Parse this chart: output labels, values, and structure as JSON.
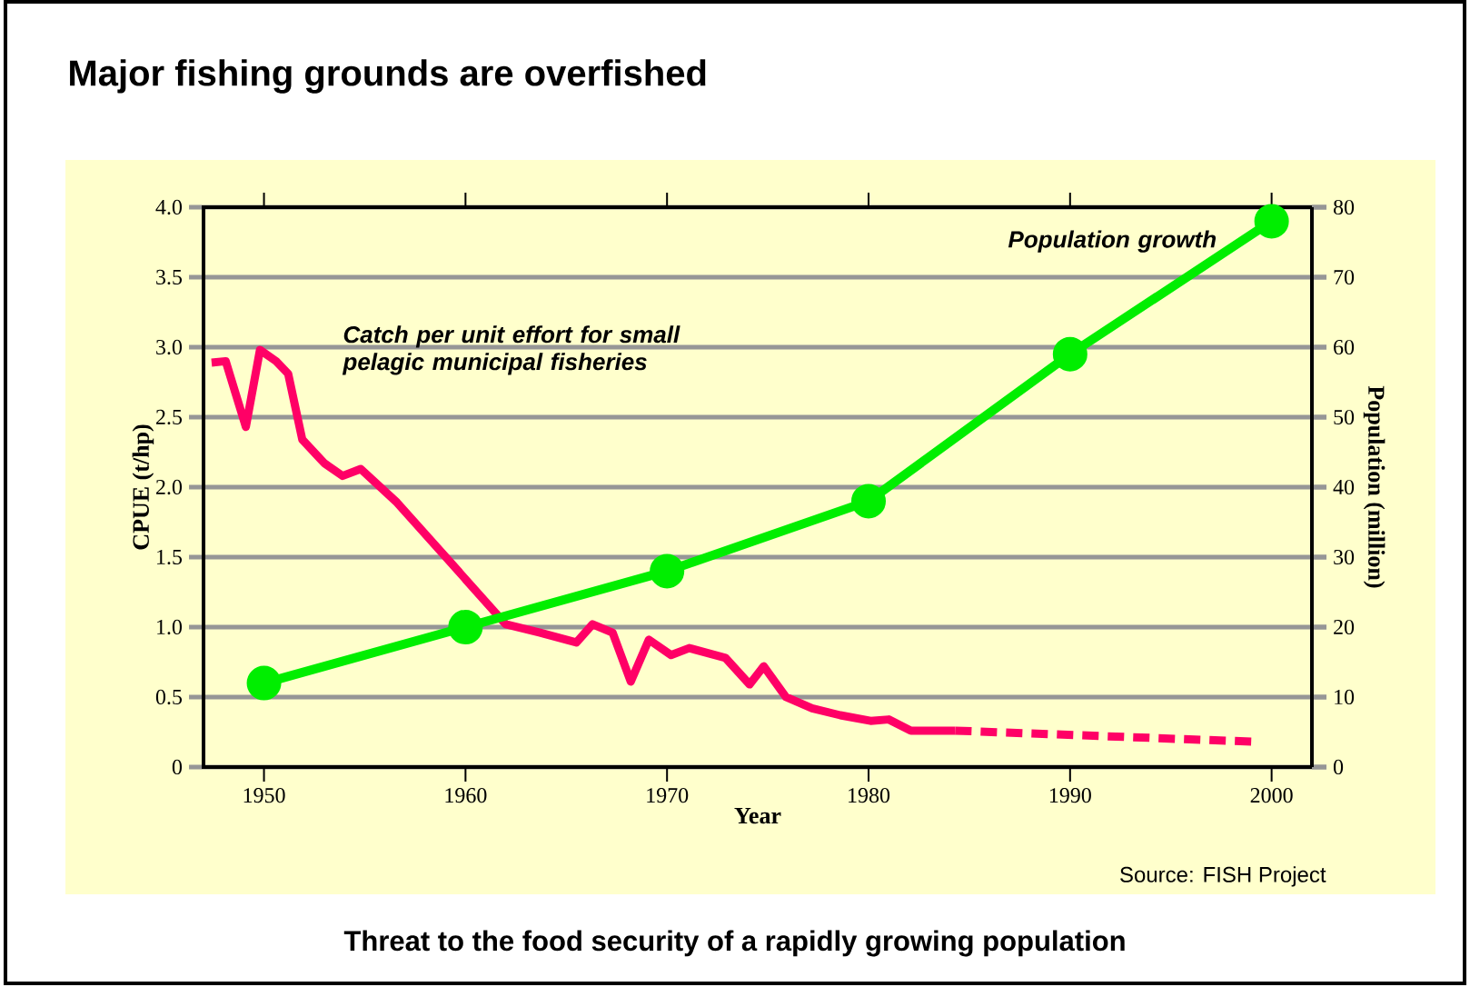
{
  "chart_data": {
    "type": "line",
    "title": "Major fishing grounds are overfished",
    "xlabel": "Year",
    "ylabel": "CPUE (t/hp)",
    "y2label": "Population (million)",
    "xlim": [
      1947,
      2002
    ],
    "xticks": [
      1950,
      1960,
      1970,
      1980,
      1990,
      2000
    ],
    "ylim": [
      0,
      4
    ],
    "yticks": [
      0,
      0.5,
      {
        "value": 1,
        "label": "1.0"
      },
      1.5,
      {
        "value": 2,
        "label": "2.0"
      },
      2.5,
      {
        "value": 3,
        "label": "3.0"
      },
      3.5,
      {
        "value": 4,
        "label": "4.0"
      }
    ],
    "y2lim": [
      0,
      80
    ],
    "y2ticks": [
      0,
      10,
      20,
      30,
      40,
      50,
      60,
      70,
      80
    ],
    "grid": "y",
    "series": [
      {
        "name": "Catch per unit effort for small pelagic municipal fisheries",
        "color": "#ff0066",
        "line_style": "solid",
        "marker": "none",
        "x": [
          1947.4,
          1948.1,
          1949.1,
          1949.8,
          1950.6,
          1951.2,
          1951.9,
          1953,
          1953.9,
          1954.8,
          1956.6,
          1962,
          1963.7,
          1965.5,
          1966.3,
          1967.3,
          1968.2,
          1969.1,
          1970.2,
          1971.1,
          1972.9,
          1974.1,
          1974.8,
          1975.9,
          1977.2,
          1978.6,
          1980.1,
          1981,
          1982.1,
          1984.3
        ],
        "values": [
          2.89,
          2.9,
          2.43,
          2.98,
          2.9,
          2.81,
          2.34,
          2.17,
          2.08,
          2.13,
          1.89,
          1.02,
          0.96,
          0.89,
          1.02,
          0.96,
          0.61,
          0.91,
          0.8,
          0.85,
          0.78,
          0.59,
          0.72,
          0.5,
          0.42,
          0.37,
          0.33,
          0.34,
          0.26,
          0.26
        ]
      },
      {
        "color": "#ff0066",
        "line_style": "dashed",
        "marker": "none",
        "x": [
          1984.3,
          1999.3
        ],
        "values": [
          0.26,
          0.18
        ]
      },
      {
        "name": "Population growth",
        "color": "#00ee00",
        "line_style": "solid",
        "marker": "circle",
        "axis": "y2",
        "x": [
          1950,
          1960,
          1970,
          1980,
          1990,
          2000
        ],
        "values": [
          12,
          20,
          28,
          38,
          59,
          78
        ]
      }
    ],
    "annotations": [
      "Source: FISH Project",
      "Threat to the food security of a rapidly growing population"
    ]
  }
}
